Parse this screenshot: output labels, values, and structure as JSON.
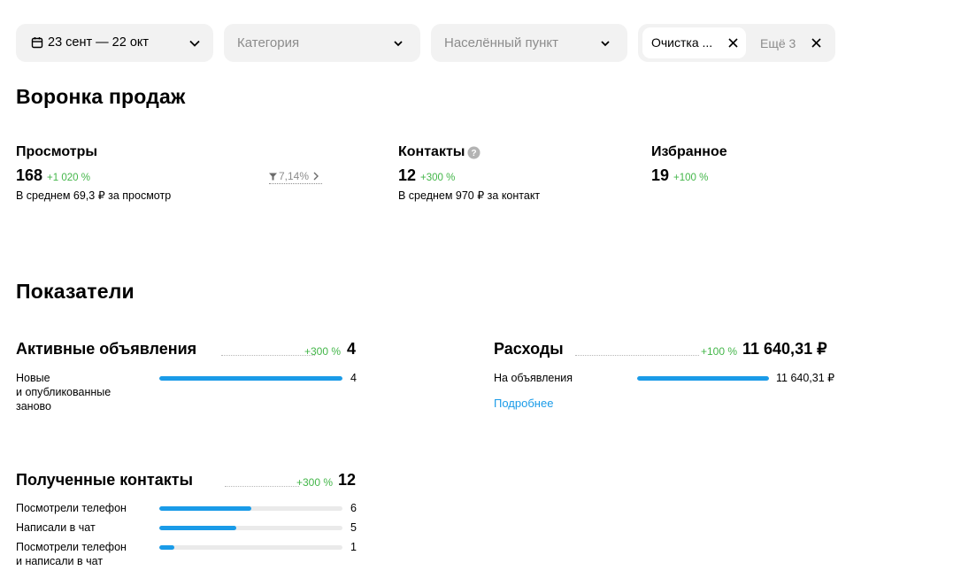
{
  "filters": {
    "date": {
      "label": "23 сент — 22 окт",
      "icon": "calendar-icon"
    },
    "category": {
      "placeholder": "Категория"
    },
    "city": {
      "placeholder": "Населённый пункт"
    },
    "extra": {
      "chip_label": "Очистка ...",
      "more_label": "Ещё 3"
    }
  },
  "funnel": {
    "title": "Воронка продаж",
    "views": {
      "label": "Просмотры",
      "value": "168",
      "delta": "+1 020 %",
      "avg": "В среднем 69,3 ₽ за просмотр",
      "conversion": "7,14%"
    },
    "contacts": {
      "label": "Контакты",
      "value": "12",
      "delta": "+300 %",
      "avg": "В среднем 970 ₽ за контакт"
    },
    "favorites": {
      "label": "Избранное",
      "value": "19",
      "delta": "+100 %"
    }
  },
  "indicators": {
    "title": "Показатели",
    "active_ads": {
      "title": "Активные объявления",
      "delta": "+300 %",
      "total": "4",
      "rows": [
        {
          "label_lines": [
            "Новые",
            "и опубликованные",
            "заново"
          ],
          "value": "4",
          "fill": 1.0
        }
      ]
    },
    "expenses": {
      "title": "Расходы",
      "delta": "+100 %",
      "total": "11 640,31 ₽",
      "rows": [
        {
          "label": "На объявления",
          "value": "11 640,31 ₽",
          "fill": 1.0
        }
      ],
      "link": "Подробнее"
    },
    "contacts": {
      "title": "Полученные контакты",
      "delta": "+300 %",
      "total": "12",
      "rows": [
        {
          "label_lines": [
            "Посмотрели телефон"
          ],
          "value": "6",
          "fill": 0.5
        },
        {
          "label_lines": [
            "Написали в чат"
          ],
          "value": "5",
          "fill": 0.42
        },
        {
          "label_lines": [
            "Посмотрели телефон",
            "и написали в чат"
          ],
          "value": "1",
          "fill": 0.08
        }
      ]
    }
  },
  "colors": {
    "accent_blue": "#1a9be8",
    "positive_green": "#43b649",
    "muted_gray": "#8c8c8c",
    "filter_bg": "#f2f2f2"
  }
}
